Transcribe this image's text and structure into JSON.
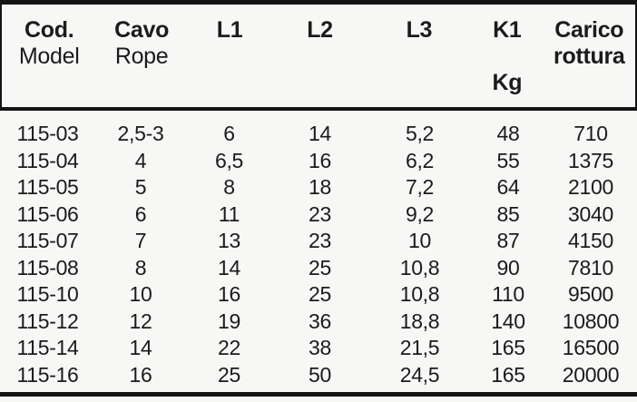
{
  "table": {
    "header": [
      {
        "line1": "Cod.",
        "line2": "Model"
      },
      {
        "line1": "Cavo",
        "line2": "Rope"
      },
      {
        "line1": "L1"
      },
      {
        "line1": "L2"
      },
      {
        "line1": "L3"
      },
      {
        "line1": "K1",
        "line3": "Kg"
      },
      {
        "line1": "Carico",
        "line2": "rottura"
      }
    ],
    "rows": [
      [
        "115-03",
        "2,5-3",
        "6",
        "14",
        "5,2",
        "48",
        "710"
      ],
      [
        "115-04",
        "4",
        "6,5",
        "16",
        "6,2",
        "55",
        "1375"
      ],
      [
        "115-05",
        "5",
        "8",
        "18",
        "7,2",
        "64",
        "2100"
      ],
      [
        "115-06",
        "6",
        "11",
        "23",
        "9,2",
        "85",
        "3040"
      ],
      [
        "115-07",
        "7",
        "13",
        "23",
        "10",
        "87",
        "4150"
      ],
      [
        "115-08",
        "8",
        "14",
        "25",
        "10,8",
        "90",
        "7810"
      ],
      [
        "115-10",
        "10",
        "16",
        "25",
        "10,8",
        "110",
        "9500"
      ],
      [
        "115-12",
        "12",
        "19",
        "36",
        "18,8",
        "140",
        "10800"
      ],
      [
        "115-14",
        "14",
        "22",
        "38",
        "21,5",
        "165",
        "16500"
      ],
      [
        "115-16",
        "16",
        "25",
        "50",
        "24,5",
        "165",
        "20000"
      ]
    ],
    "colors": {
      "text": "#1b1b1b",
      "rule": "#141414",
      "background": "#f7f7f6"
    }
  }
}
